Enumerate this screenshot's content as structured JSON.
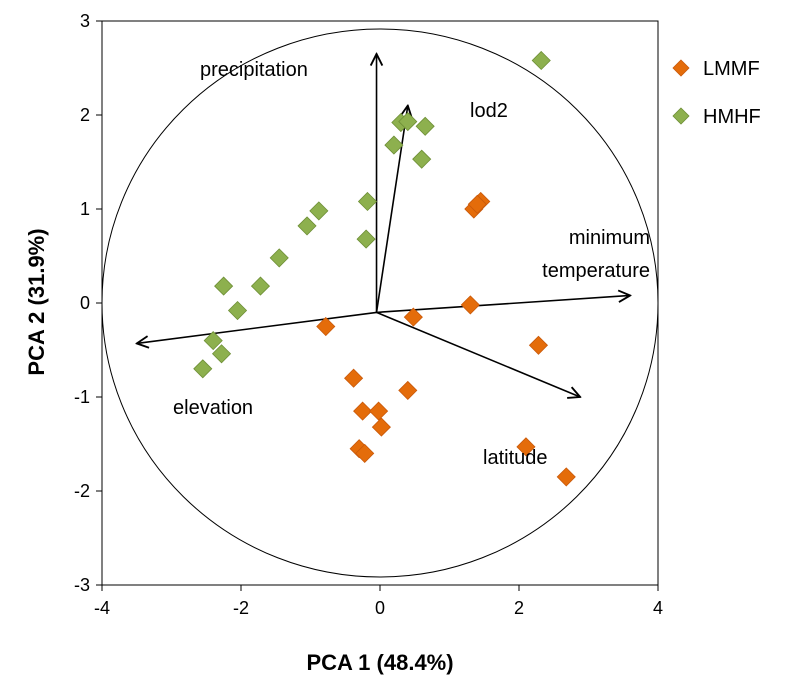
{
  "chart_data": {
    "type": "scatter",
    "title": "",
    "xlabel": "PCA 1 (48.4%)",
    "ylabel": "PCA 2 (31.9%)",
    "xlim": [
      -4,
      4
    ],
    "ylim": [
      -3,
      3
    ],
    "xticks": [
      -4,
      -2,
      0,
      2,
      4
    ],
    "yticks": [
      -3,
      -2,
      -1,
      0,
      1,
      2,
      3
    ],
    "grid": false,
    "legend_position": "right",
    "colors": {
      "LMMF": "#E46C0A",
      "HMHF": "#8DB04E"
    },
    "series": [
      {
        "name": "LMMF",
        "marker": "diamond",
        "points": [
          [
            1.35,
            1.0
          ],
          [
            1.45,
            1.08
          ],
          [
            1.4,
            1.05
          ],
          [
            1.3,
            -0.02
          ],
          [
            2.28,
            -0.45
          ],
          [
            0.48,
            -0.15
          ],
          [
            -0.78,
            -0.25
          ],
          [
            -0.38,
            -0.8
          ],
          [
            0.4,
            -0.93
          ],
          [
            -0.25,
            -1.15
          ],
          [
            -0.02,
            -1.15
          ],
          [
            0.02,
            -1.32
          ],
          [
            -0.3,
            -1.55
          ],
          [
            -0.22,
            -1.6
          ],
          [
            2.1,
            -1.53
          ],
          [
            2.68,
            -1.85
          ]
        ]
      },
      {
        "name": "HMHF",
        "marker": "diamond",
        "points": [
          [
            2.32,
            2.58
          ],
          [
            0.3,
            1.92
          ],
          [
            0.4,
            1.93
          ],
          [
            0.65,
            1.88
          ],
          [
            0.2,
            1.68
          ],
          [
            0.6,
            1.53
          ],
          [
            -0.18,
            1.08
          ],
          [
            -0.88,
            0.98
          ],
          [
            -1.05,
            0.82
          ],
          [
            -0.2,
            0.68
          ],
          [
            -1.45,
            0.48
          ],
          [
            -1.72,
            0.18
          ],
          [
            -2.25,
            0.18
          ],
          [
            -2.05,
            -0.08
          ],
          [
            -2.4,
            -0.4
          ],
          [
            -2.28,
            -0.54
          ],
          [
            -2.55,
            -0.7
          ]
        ]
      }
    ],
    "loadings": [
      {
        "label": "precipitation",
        "x": -0.05,
        "y": 2.65
      },
      {
        "label": "lod2",
        "x": 0.4,
        "y": 2.1
      },
      {
        "label": "minimum temperature",
        "x": 3.6,
        "y": 0.08
      },
      {
        "label": "latitude",
        "x": 2.88,
        "y": -1.0
      },
      {
        "label": "elevation",
        "x": -3.5,
        "y": -0.43
      }
    ],
    "arrow_origin": [
      -0.05,
      -0.1
    ],
    "circle": {
      "center": [
        0,
        0
      ],
      "radius": 4
    }
  }
}
